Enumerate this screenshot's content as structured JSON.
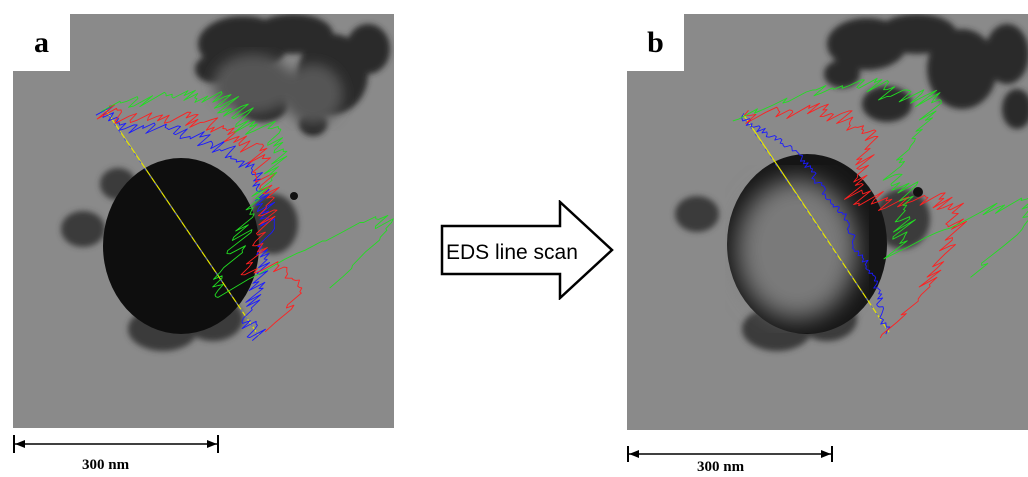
{
  "panels": {
    "a": {
      "label": "a",
      "scale_text": "300 nm"
    },
    "b": {
      "label": "b",
      "scale_text": "300 nm"
    }
  },
  "arrow": {
    "text": "EDS line scan"
  },
  "colors": {
    "background_gray": "#8a8a8a",
    "particle": "#0e0e0e",
    "scan_line": "#e6e600",
    "signal_blue": "#1a1aff",
    "signal_red": "#ff2020",
    "signal_green": "#22dd22"
  }
}
